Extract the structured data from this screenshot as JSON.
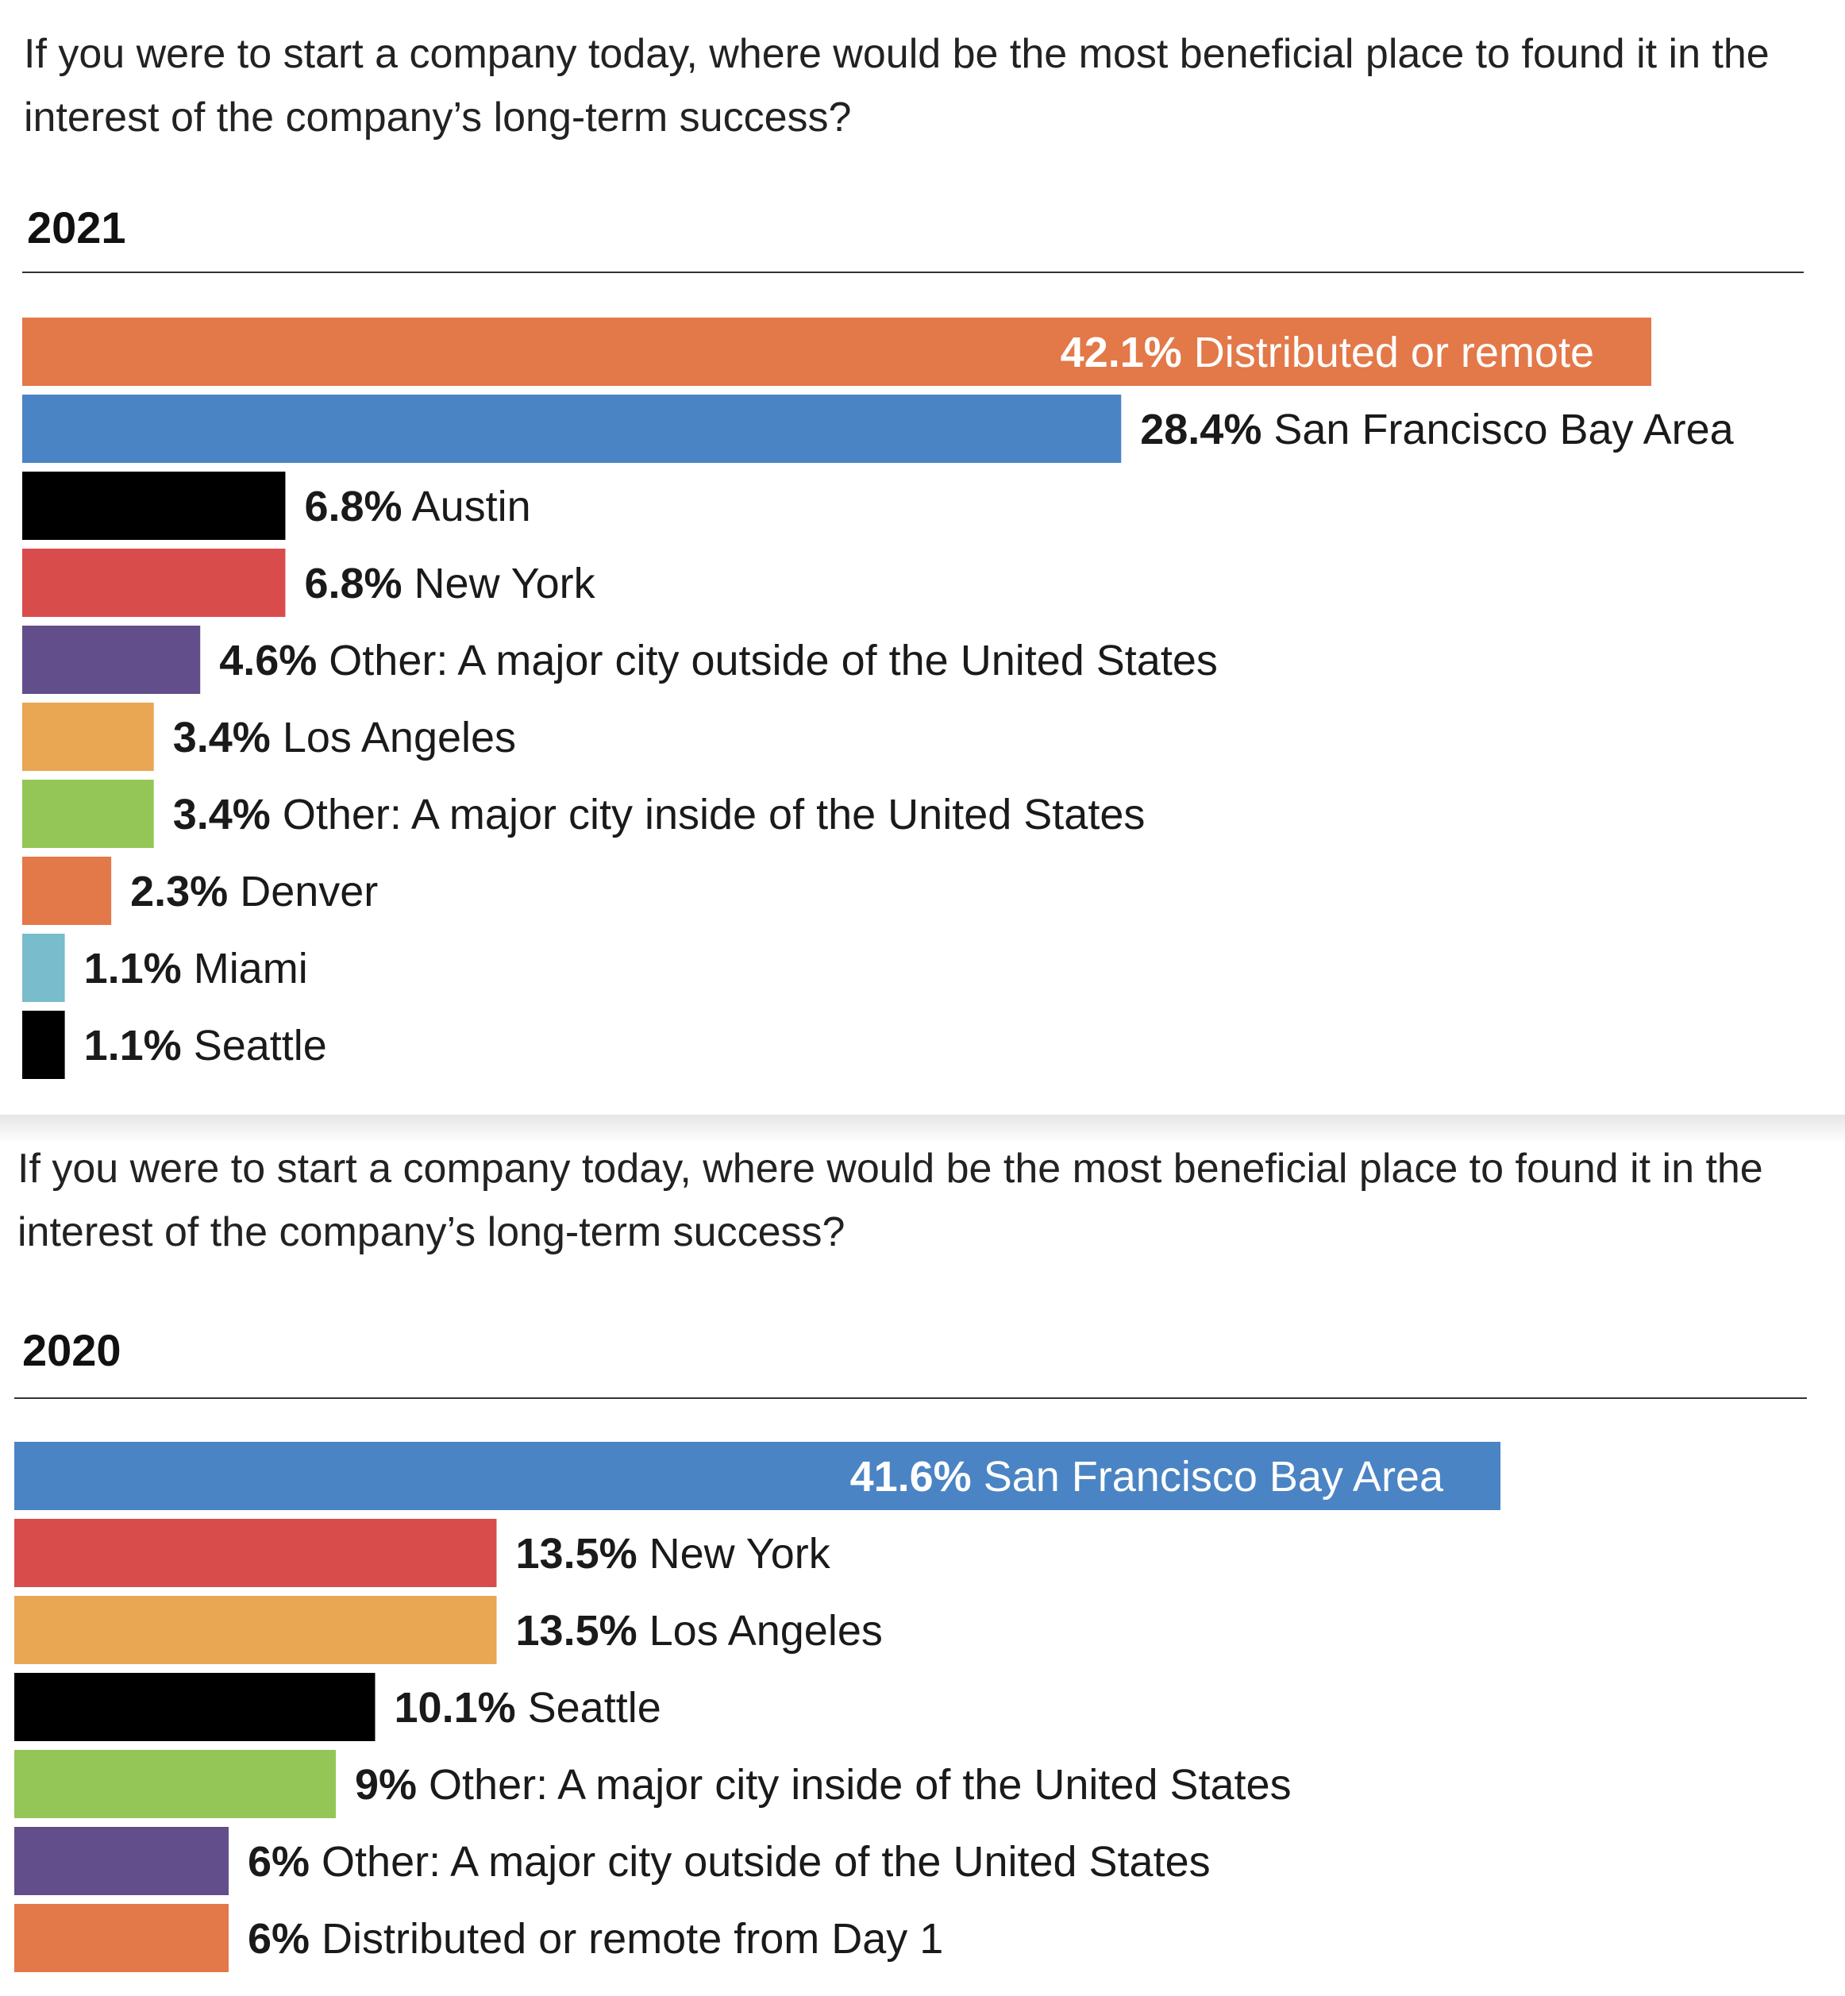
{
  "chart_data": [
    {
      "type": "bar",
      "orientation": "horizontal",
      "title": "If you were to start a company today, where would be the most beneficial place to found it in the interest of the company’s long-term success?",
      "subtitle": "2021",
      "xlim": [
        0,
        42.1
      ],
      "categories": [
        "Distributed or remote",
        "San Francisco Bay Area",
        "Austin",
        "New York",
        "Other: A major city outside of the United States",
        "Los Angeles",
        "Other: A major city inside of the United States",
        "Denver",
        "Miami",
        "Seattle"
      ],
      "values": [
        42.1,
        28.4,
        6.8,
        6.8,
        4.6,
        3.4,
        3.4,
        2.3,
        1.1,
        1.1
      ],
      "value_labels": [
        "42.1%",
        "28.4%",
        "6.8%",
        "6.8%",
        "4.6%",
        "3.4%",
        "3.4%",
        "2.3%",
        "1.1%",
        "1.1%"
      ],
      "colors": [
        "#e37849",
        "#4a84c4",
        "#000000",
        "#d94c4c",
        "#624e8a",
        "#e9a653",
        "#93c657",
        "#e37849",
        "#79bccb",
        "#000000"
      ],
      "label_inside": [
        true,
        false,
        false,
        false,
        false,
        false,
        false,
        false,
        false,
        false
      ]
    },
    {
      "type": "bar",
      "orientation": "horizontal",
      "title": "If you were to start a company today, where would be the most beneficial place to found it in the interest of the company’s long-term success?",
      "subtitle": "2020",
      "xlim": [
        0,
        41.6
      ],
      "categories": [
        "San Francisco Bay Area",
        "New York",
        "Los Angeles",
        "Seattle",
        "Other: A major city inside of the United States",
        "Other: A major city outside of the United States",
        "Distributed or remote from Day 1"
      ],
      "values": [
        41.6,
        13.5,
        13.5,
        10.1,
        9,
        6,
        6
      ],
      "value_labels": [
        "41.6%",
        "13.5%",
        "13.5%",
        "10.1%",
        "9%",
        "6%",
        "6%"
      ],
      "colors": [
        "#4a84c4",
        "#d94c4c",
        "#e9a653",
        "#000000",
        "#93c657",
        "#624e8a",
        "#e37849"
      ],
      "label_inside": [
        true,
        false,
        false,
        false,
        false,
        false,
        false
      ]
    }
  ]
}
